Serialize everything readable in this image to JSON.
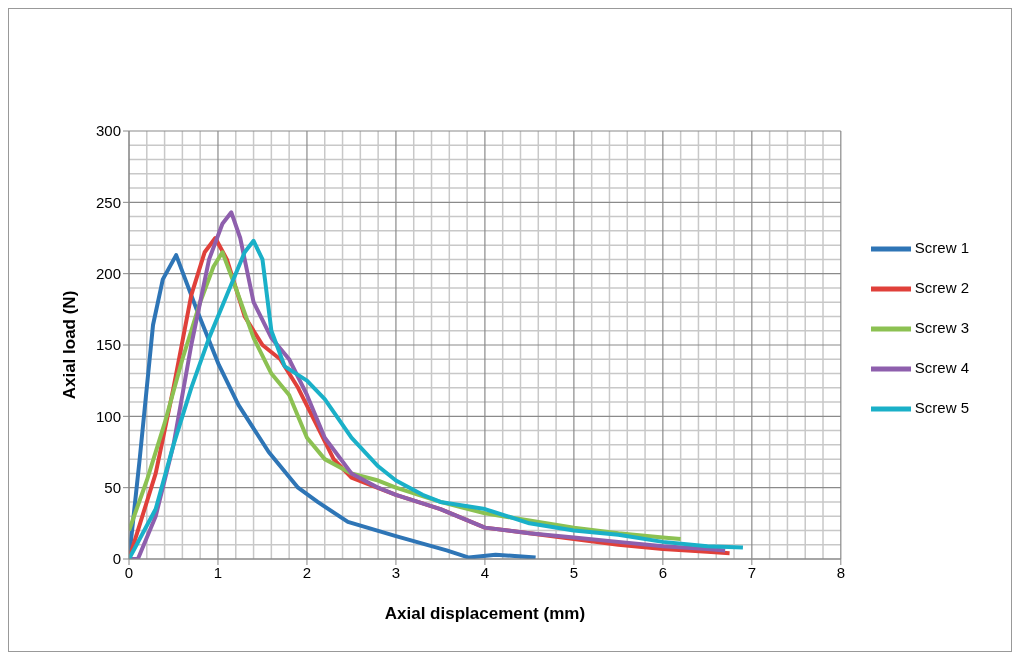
{
  "chart_data": {
    "type": "line",
    "xlabel": "Axial displacement (mm)",
    "ylabel": "Axial load (N)",
    "xlim": [
      0,
      8
    ],
    "xticks": [
      0,
      1,
      2,
      3,
      4,
      5,
      6,
      7,
      8
    ],
    "ylim": [
      0,
      300
    ],
    "yticks": [
      0,
      50,
      100,
      150,
      200,
      250,
      300
    ],
    "grid": true,
    "legend": "right",
    "marker": "none",
    "line_style": "solid",
    "series": [
      {
        "name": "Screw 1",
        "color": "#2e75b6",
        "x": [
          0,
          0.12,
          0.27,
          0.38,
          0.53,
          0.76,
          1.01,
          1.23,
          1.57,
          1.9,
          2.12,
          2.46,
          3.0,
          3.57,
          3.82,
          4.12,
          4.57
        ],
        "values": [
          0,
          70,
          164,
          196,
          213,
          175,
          136,
          108,
          75,
          50,
          40,
          26,
          16,
          6,
          1,
          3,
          1
        ]
      },
      {
        "name": "Screw 2",
        "color": "#e0403a",
        "x": [
          0,
          0.3,
          0.5,
          0.7,
          0.85,
          0.97,
          1.1,
          1.3,
          1.5,
          1.7,
          1.9,
          2.1,
          2.3,
          2.5,
          3.0,
          3.5,
          4.0,
          4.5,
          5.0,
          5.5,
          6.0,
          6.5,
          6.75
        ],
        "values": [
          0,
          60,
          120,
          185,
          215,
          225,
          210,
          170,
          150,
          140,
          120,
          95,
          70,
          57,
          45,
          35,
          22,
          18,
          14,
          10,
          7,
          5,
          4
        ]
      },
      {
        "name": "Screw 3",
        "color": "#8cc152",
        "x": [
          0,
          0.2,
          0.4,
          0.6,
          0.8,
          0.95,
          1.05,
          1.2,
          1.4,
          1.6,
          1.8,
          2.0,
          2.2,
          2.5,
          2.8,
          3.0,
          3.5,
          4.0,
          4.5,
          5.0,
          5.5,
          6.0,
          6.2
        ],
        "values": [
          20,
          55,
          95,
          140,
          180,
          205,
          215,
          190,
          155,
          130,
          115,
          85,
          70,
          60,
          55,
          50,
          40,
          32,
          27,
          22,
          18,
          15,
          14
        ]
      },
      {
        "name": "Screw 4",
        "color": "#8e5fad",
        "x": [
          0,
          0.1,
          0.3,
          0.5,
          0.7,
          0.9,
          1.05,
          1.15,
          1.25,
          1.4,
          1.6,
          1.8,
          2.0,
          2.2,
          2.5,
          2.8,
          3.0,
          3.5,
          4.0,
          4.5,
          5.0,
          5.5,
          6.0,
          6.5,
          6.7
        ],
        "values": [
          0,
          0,
          30,
          80,
          150,
          210,
          235,
          243,
          225,
          180,
          155,
          140,
          115,
          85,
          60,
          50,
          45,
          35,
          22,
          18,
          15,
          12,
          9,
          7,
          6
        ]
      },
      {
        "name": "Screw 5",
        "color": "#1ab0c8",
        "x": [
          0,
          0.3,
          0.5,
          0.7,
          0.9,
          1.1,
          1.3,
          1.4,
          1.5,
          1.6,
          1.75,
          2.0,
          2.2,
          2.5,
          2.8,
          3.0,
          3.3,
          3.5,
          4.0,
          4.5,
          5.0,
          5.5,
          6.0,
          6.5,
          6.9
        ],
        "values": [
          0,
          35,
          80,
          120,
          155,
          185,
          215,
          223,
          210,
          160,
          135,
          125,
          112,
          85,
          65,
          55,
          45,
          40,
          35,
          25,
          20,
          17,
          12,
          9,
          8
        ]
      }
    ]
  }
}
